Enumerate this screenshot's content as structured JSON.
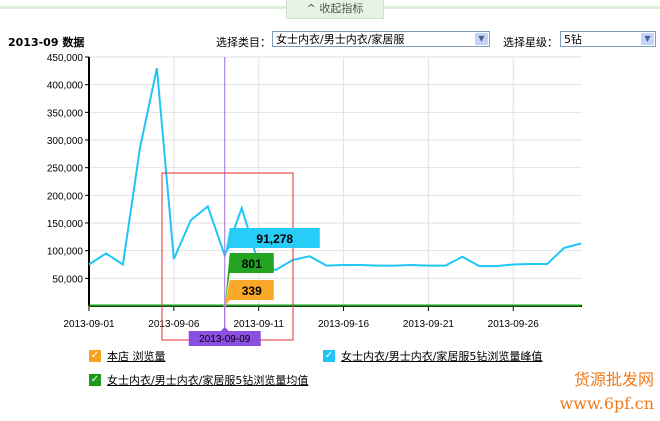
{
  "header": {
    "collapse_label": "^ 收起指标",
    "title": "2013-09 数据",
    "category_label": "选择类目：",
    "category_value": "女士内衣/男士内衣/家居服",
    "level_label": "选择星级：",
    "level_value": "5钻"
  },
  "chart_data": {
    "type": "line",
    "x": [
      "2013-09-01",
      "2013-09-02",
      "2013-09-03",
      "2013-09-04",
      "2013-09-05",
      "2013-09-06",
      "2013-09-07",
      "2013-09-08",
      "2013-09-09",
      "2013-09-10",
      "2013-09-11",
      "2013-09-12",
      "2013-09-13",
      "2013-09-14",
      "2013-09-15",
      "2013-09-16",
      "2013-09-17",
      "2013-09-18",
      "2013-09-19",
      "2013-09-20",
      "2013-09-21",
      "2013-09-22",
      "2013-09-23",
      "2013-09-24",
      "2013-09-25",
      "2013-09-26",
      "2013-09-27",
      "2013-09-28",
      "2013-09-29",
      "2013-09-30"
    ],
    "xticks": [
      "2013-09-01",
      "2013-09-06",
      "2013-09-11",
      "2013-09-16",
      "2013-09-21",
      "2013-09-26"
    ],
    "yticks": [
      "50,000",
      "100,000",
      "150,000",
      "200,000",
      "250,000",
      "300,000",
      "350,000",
      "400,000",
      "450,000"
    ],
    "ylim": [
      0,
      450000
    ],
    "grid": true,
    "series": [
      {
        "name": "女士内衣/男士内衣/家居服5钻浏览量峰值",
        "color": "#1fc6f5",
        "values": [
          75000,
          95000,
          75000,
          285000,
          430000,
          85000,
          155000,
          180000,
          91278,
          177000,
          76000,
          65000,
          83000,
          90000,
          73000,
          74000,
          74000,
          73000,
          73000,
          74000,
          73000,
          73000,
          89000,
          72000,
          72000,
          75000,
          76000,
          76000,
          105000,
          113000
        ]
      },
      {
        "name": "女士内衣/男士内衣/家居服5钻浏览量均值",
        "color": "#1b9a1b",
        "values": [
          800,
          800,
          800,
          800,
          800,
          800,
          800,
          800,
          801,
          800,
          800,
          800,
          800,
          800,
          800,
          800,
          800,
          800,
          800,
          800,
          800,
          800,
          800,
          800,
          800,
          800,
          800,
          800,
          800,
          800
        ]
      },
      {
        "name": "本店 浏览量",
        "color": "#f7a21b",
        "values": [
          null,
          null,
          null,
          null,
          null,
          null,
          null,
          null,
          339,
          null,
          null,
          null,
          null,
          null,
          null,
          null,
          null,
          null,
          null,
          null,
          null,
          null,
          null,
          null,
          null,
          null,
          null,
          null,
          null,
          null
        ]
      }
    ],
    "tooltip": {
      "date": "2013-09-09",
      "peak": "91,278",
      "avg": "801",
      "shop": "339"
    }
  },
  "legend": [
    {
      "label": "本店 浏览量",
      "color": "#f7a21b"
    },
    {
      "label": "女士内衣/男士内衣/家居服5钻浏览量峰值",
      "color": "#1fc6f5"
    },
    {
      "label": "女士内衣/男士内衣/家居服5钻浏览量均值",
      "color": "#1b9a1b"
    }
  ],
  "watermark": {
    "line1": "货源批发网",
    "line2": "www.6pf.cn"
  }
}
